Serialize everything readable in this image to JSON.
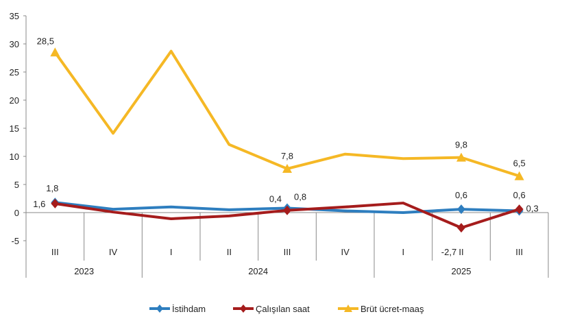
{
  "chart_data": {
    "type": "line",
    "categories": [
      "III",
      "IV",
      "I",
      "II",
      "III",
      "IV",
      "I",
      "II",
      "III"
    ],
    "years": [
      {
        "label": "2023",
        "span": [
          0,
          1
        ]
      },
      {
        "label": "2024",
        "span": [
          2,
          5
        ]
      },
      {
        "label": "2025",
        "span": [
          6,
          8
        ]
      }
    ],
    "ylim": [
      -5,
      35
    ],
    "yticks": [
      -5,
      0,
      5,
      10,
      15,
      20,
      25,
      30,
      35
    ],
    "grid": false,
    "legend": "bottom",
    "series": [
      {
        "name": "İstihdam",
        "color": "#2e7ebf",
        "marker": "diamond",
        "values": [
          1.8,
          0.6,
          1.0,
          0.5,
          0.8,
          0.3,
          0.0,
          0.6,
          0.3
        ],
        "labels": [
          "1,8",
          null,
          null,
          null,
          "0,8",
          null,
          null,
          "0,6",
          "0,3"
        ]
      },
      {
        "name": "Çalışılan saat",
        "color": "#a51c1c",
        "marker": "diamond",
        "values": [
          1.6,
          0.1,
          -1.1,
          -0.6,
          0.4,
          1.0,
          1.7,
          -2.7,
          0.6
        ],
        "labels": [
          "1,6",
          null,
          null,
          null,
          "0,4",
          null,
          null,
          "-2,7",
          "0,6"
        ]
      },
      {
        "name": "Brüt ücret-maaş",
        "color": "#f5b825",
        "marker": "triangle",
        "values": [
          28.5,
          14.1,
          28.7,
          12.1,
          7.8,
          10.4,
          9.6,
          9.8,
          6.5
        ],
        "labels": [
          "28,5",
          null,
          null,
          null,
          "7,8",
          null,
          null,
          "9,8",
          "6,5"
        ]
      }
    ]
  }
}
